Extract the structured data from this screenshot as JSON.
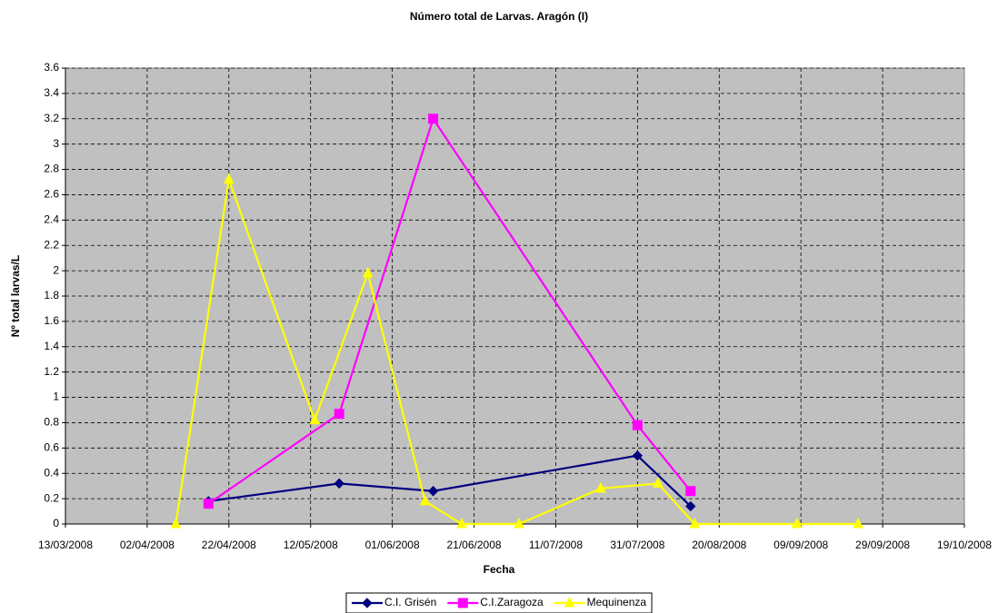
{
  "chart_data": {
    "type": "line",
    "title": "Número total de Larvas. Aragón (I)",
    "xlabel": "Fecha",
    "ylabel": "Nº total larvas/L",
    "xlim": [
      "13/03/2008",
      "19/10/2008"
    ],
    "xticks": [
      "13/03/2008",
      "02/04/2008",
      "22/04/2008",
      "12/05/2008",
      "01/06/2008",
      "21/06/2008",
      "11/07/2008",
      "31/07/2008",
      "20/08/2008",
      "09/09/2008",
      "29/09/2008",
      "19/10/2008"
    ],
    "ylim": [
      0,
      3.6
    ],
    "yticks": [
      0,
      0.2,
      0.4,
      0.6,
      0.8,
      1,
      1.2,
      1.4,
      1.6,
      1.8,
      2,
      2.2,
      2.4,
      2.6,
      2.8,
      3,
      3.2,
      3.4,
      3.6
    ],
    "grid": true,
    "background": "#c0c0c0",
    "legend": "bottom",
    "series": [
      {
        "name": "C.I. Grisén",
        "color": "#000080",
        "marker": "diamond",
        "x": [
          "17/04/2008",
          "19/05/2008",
          "11/06/2008",
          "31/07/2008",
          "13/08/2008"
        ],
        "values": [
          0.18,
          0.32,
          0.26,
          0.54,
          0.14
        ]
      },
      {
        "name": "C.I.Zaragoza",
        "color": "#ff00ff",
        "marker": "square",
        "x": [
          "17/04/2008",
          "19/05/2008",
          "11/06/2008",
          "31/07/2008",
          "13/08/2008"
        ],
        "values": [
          0.16,
          0.87,
          3.2,
          0.78,
          0.26
        ]
      },
      {
        "name": "Mequinenza",
        "color": "#ffff00",
        "marker": "triangle",
        "x": [
          "09/04/2008",
          "22/04/2008",
          "13/05/2008",
          "26/05/2008",
          "09/06/2008",
          "18/06/2008",
          "02/07/2008",
          "22/07/2008",
          "05/08/2008",
          "14/08/2008",
          "08/09/2008",
          "23/09/2008"
        ],
        "values": [
          0,
          2.72,
          0.82,
          1.98,
          0.18,
          0,
          0,
          0.28,
          0.32,
          0,
          0,
          0
        ]
      }
    ]
  }
}
